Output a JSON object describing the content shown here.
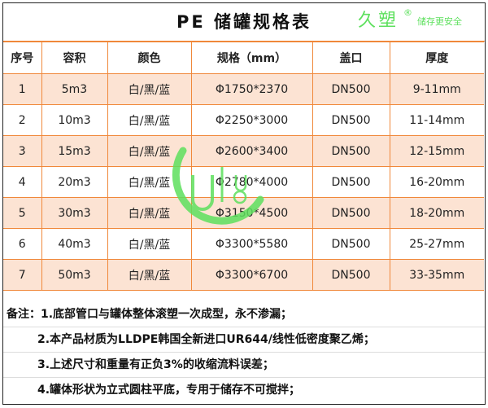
{
  "title": "PE 储罐规格表",
  "columns": [
    "序号",
    "容积",
    "颜色",
    "规格（mm）",
    "盖口",
    "厚度"
  ],
  "rows": [
    [
      "1",
      "5m3",
      "白/黑/蓝",
      "Φ1750*2370",
      "DN500",
      "9-11mm"
    ],
    [
      "2",
      "10m3",
      "白/黑/蓝",
      "Φ2250*3000",
      "DN500",
      "11-14mm"
    ],
    [
      "3",
      "15m3",
      "白/黑/蓝",
      "Φ2600*3400",
      "DN500",
      "12-15mm"
    ],
    [
      "4",
      "20m3",
      "白/黑/蓝",
      "Φ2780*4000",
      "DN500",
      "16-20mm"
    ],
    [
      "5",
      "30m3",
      "白/黑/蓝",
      "Φ3150*4500",
      "DN500",
      "18-20mm"
    ],
    [
      "6",
      "40m3",
      "白/黑/蓝",
      "Φ3300*5580",
      "DN500",
      "25-27mm"
    ],
    [
      "7",
      "50m3",
      "白/黑/蓝",
      "Φ3300*6700",
      "DN500",
      "33-35mm"
    ]
  ],
  "notes": [
    "备注：1.底部管口与罐体整体滚塑一次成型，永不渗漏；",
    "2.本产品材质为LLDPE韩国全新进口UR644/线性低密度聚乙烯；",
    "3.上述尺寸和重量有正负3%的收缩流料误差；",
    "4.罐体形状为立式圆柱平底，专用于储存不可搅拌；"
  ],
  "watermark": {
    "brand": "久塑",
    "slogan": "储存更安全",
    "mark": "®",
    "color": "#5ee05e"
  },
  "colors": {
    "border": "#f0883a",
    "shade": "#fce3d3"
  }
}
